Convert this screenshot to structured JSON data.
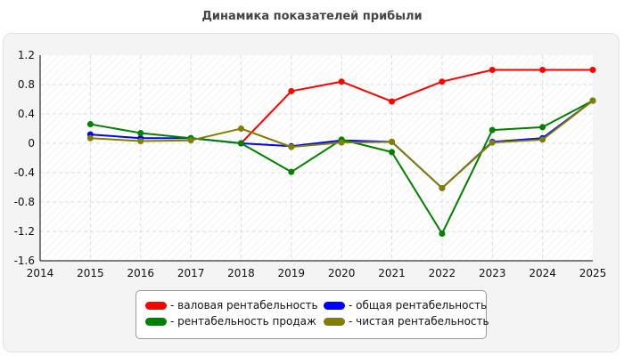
{
  "chart_data": {
    "type": "line",
    "title": "Динамика показателей прибыли",
    "xlabel": "",
    "ylabel": "",
    "xlim": [
      2014,
      2025
    ],
    "ylim": [
      -1.6,
      1.2
    ],
    "x_ticks": [
      "2014",
      "2015",
      "2016",
      "2017",
      "2018",
      "2019",
      "2020",
      "2021",
      "2022",
      "2023",
      "2024",
      "2025"
    ],
    "y_ticks": [
      "1.2",
      "0.8",
      "0.4",
      "0",
      "-0.4",
      "-0.8",
      "-1.2",
      "-1.6"
    ],
    "y_tick_values": [
      1.2,
      0.8,
      0.4,
      0,
      -0.4,
      -0.8,
      -1.2,
      -1.6
    ],
    "grid": true,
    "legend_position": "bottom",
    "x": [
      2015,
      2016,
      2017,
      2018,
      2019,
      2020,
      2021,
      2022,
      2023,
      2024,
      2025
    ],
    "series": [
      {
        "name": "- валовая рентабельность",
        "color": "#ff0000",
        "values": [
          null,
          null,
          null,
          0.0,
          0.71,
          0.84,
          0.57,
          0.84,
          1.0,
          1.0,
          1.0
        ]
      },
      {
        "name": "- общая рентабельность",
        "color": "#0000ff",
        "values": [
          0.12,
          0.07,
          0.07,
          0.0,
          -0.04,
          0.04,
          0.02,
          -0.61,
          0.02,
          0.07,
          0.58
        ]
      },
      {
        "name": "- рентабельность продаж",
        "color": "#008000",
        "values": [
          0.26,
          0.14,
          0.07,
          0.0,
          -0.39,
          0.05,
          -0.12,
          -1.23,
          0.18,
          0.22,
          0.58
        ]
      },
      {
        "name": "- чистая рентабельность",
        "color": "#808000",
        "values": [
          0.07,
          0.03,
          0.04,
          0.2,
          -0.05,
          0.01,
          0.02,
          -0.61,
          0.01,
          0.05,
          0.58
        ]
      }
    ]
  },
  "legend": {
    "items": [
      {
        "label": "- валовая рентабельность",
        "color": "#ff0000"
      },
      {
        "label": "- общая рентабельность",
        "color": "#0000ff"
      },
      {
        "label": "- рентабельность продаж",
        "color": "#008000"
      },
      {
        "label": "- чистая рентабельность",
        "color": "#808000"
      }
    ]
  }
}
